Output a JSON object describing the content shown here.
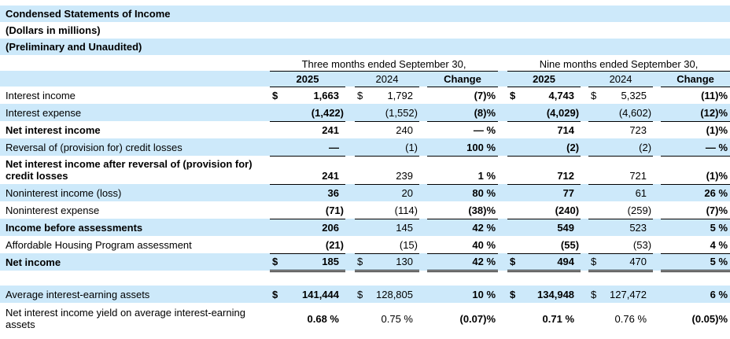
{
  "colors": {
    "row_stripe": "#cde9fa",
    "text": "#000000"
  },
  "titles": [
    "Condensed Statements of Income",
    "(Dollars in millions)",
    "(Preliminary and Unaudited)"
  ],
  "periods": [
    {
      "label": "Three months ended September 30,",
      "years": [
        "2025",
        "2024",
        "Change"
      ]
    },
    {
      "label": "Nine months ended September 30,",
      "years": [
        "2025",
        "2024",
        "Change"
      ]
    }
  ],
  "rows": [
    {
      "label": "Interest income",
      "bold": false,
      "stripe": false,
      "border": "none",
      "cells": [
        {
          "d": "$",
          "v": "1,663"
        },
        {
          "d": "$",
          "v": "1,792"
        },
        {
          "v": "(7)%"
        },
        {
          "d": "$",
          "v": "4,743"
        },
        {
          "d": "$",
          "v": "5,325"
        },
        {
          "v": "(11)%"
        }
      ]
    },
    {
      "label": "Interest expense",
      "bold": false,
      "stripe": true,
      "border": "bottom",
      "cells": [
        {
          "v": "(1,422)"
        },
        {
          "v": "(1,552)"
        },
        {
          "v": "(8)%"
        },
        {
          "v": "(4,029)"
        },
        {
          "v": "(4,602)"
        },
        {
          "v": "(12)%"
        }
      ]
    },
    {
      "label": "Net interest income",
      "bold": true,
      "stripe": false,
      "border": "none",
      "cells": [
        {
          "v": "241"
        },
        {
          "v": "240"
        },
        {
          "v": "— %"
        },
        {
          "v": "714"
        },
        {
          "v": "723"
        },
        {
          "v": "(1)%"
        }
      ]
    },
    {
      "label": "Reversal of (provision for) credit losses",
      "bold": false,
      "stripe": true,
      "border": "bottom",
      "cells": [
        {
          "v": "—"
        },
        {
          "v": "(1)"
        },
        {
          "v": "100 %"
        },
        {
          "v": "(2)"
        },
        {
          "v": "(2)"
        },
        {
          "v": "— %"
        }
      ]
    },
    {
      "label": "Net interest income after reversal of (provision for) credit losses",
      "bold": true,
      "stripe": false,
      "border": "bottom",
      "cells": [
        {
          "v": "241"
        },
        {
          "v": "239"
        },
        {
          "v": "1 %"
        },
        {
          "v": "712"
        },
        {
          "v": "721"
        },
        {
          "v": "(1)%"
        }
      ]
    },
    {
      "label": "Noninterest income (loss)",
      "bold": false,
      "stripe": true,
      "border": "none",
      "cells": [
        {
          "v": "36"
        },
        {
          "v": "20"
        },
        {
          "v": "80 %"
        },
        {
          "v": "77"
        },
        {
          "v": "61"
        },
        {
          "v": "26 %"
        }
      ]
    },
    {
      "label": "Noninterest expense",
      "bold": false,
      "stripe": false,
      "border": "bottom",
      "cells": [
        {
          "v": "(71)"
        },
        {
          "v": "(114)"
        },
        {
          "v": "(38)%"
        },
        {
          "v": "(240)"
        },
        {
          "v": "(259)"
        },
        {
          "v": "(7)%"
        }
      ]
    },
    {
      "label": "Income before assessments",
      "bold": true,
      "stripe": true,
      "border": "none",
      "cells": [
        {
          "v": "206"
        },
        {
          "v": "145"
        },
        {
          "v": "42 %"
        },
        {
          "v": "549"
        },
        {
          "v": "523"
        },
        {
          "v": "5 %"
        }
      ]
    },
    {
      "label": "Affordable Housing Program assessment",
      "bold": false,
      "stripe": false,
      "border": "bottom",
      "cells": [
        {
          "v": "(21)"
        },
        {
          "v": "(15)"
        },
        {
          "v": "40 %"
        },
        {
          "v": "(55)"
        },
        {
          "v": "(53)"
        },
        {
          "v": "4 %"
        }
      ]
    },
    {
      "label": "Net income",
      "bold": true,
      "stripe": true,
      "border": "double",
      "cells": [
        {
          "d": "$",
          "v": "185"
        },
        {
          "d": "$",
          "v": "130"
        },
        {
          "v": "42 %"
        },
        {
          "d": "$",
          "v": "494"
        },
        {
          "d": "$",
          "v": "470"
        },
        {
          "v": "5 %"
        }
      ]
    },
    {
      "type": "gap"
    },
    {
      "label": "Average interest-earning assets",
      "bold": false,
      "stripe": true,
      "border": "none",
      "cells": [
        {
          "d": "$",
          "v": "141,444"
        },
        {
          "d": "$",
          "v": "128,805"
        },
        {
          "v": "10 %"
        },
        {
          "d": "$",
          "v": "134,948"
        },
        {
          "d": "$",
          "v": "127,472"
        },
        {
          "v": "6 %"
        }
      ]
    },
    {
      "label": "Net interest income yield on average interest-earning assets",
      "bold": false,
      "stripe": false,
      "border": "none",
      "cells": [
        {
          "v": "0.68 %"
        },
        {
          "v": "0.75 %"
        },
        {
          "v": "(0.07)%"
        },
        {
          "v": "0.71 %"
        },
        {
          "v": "0.76 %"
        },
        {
          "v": "(0.05)%"
        }
      ]
    }
  ]
}
